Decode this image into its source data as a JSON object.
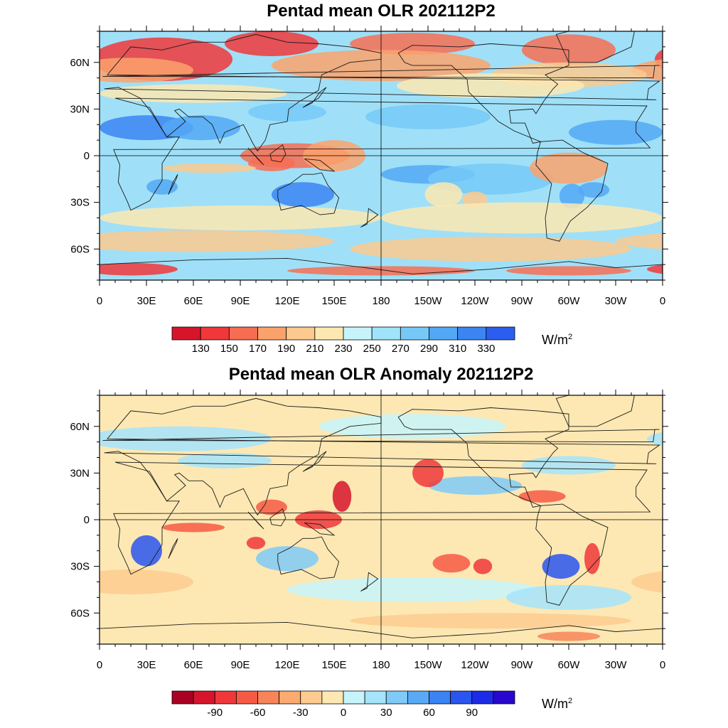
{
  "panels": [
    {
      "title": "Pentad mean OLR 202112P2",
      "lat_labels": [
        "60N",
        "30N",
        "0",
        "30S",
        "60S"
      ],
      "lon_labels": [
        "0",
        "30E",
        "60E",
        "90E",
        "120E",
        "150E",
        "180",
        "150W",
        "120W",
        "90W",
        "60W",
        "30W",
        "0"
      ],
      "colorbar": {
        "labels": [
          "130",
          "150",
          "170",
          "190",
          "210",
          "230",
          "250",
          "270",
          "290",
          "310",
          "330"
        ],
        "colors": [
          "#d7152a",
          "#f0373a",
          "#f76d52",
          "#fba26c",
          "#fcc98e",
          "#fde8b1",
          "#c7f4fb",
          "#9fe4fb",
          "#76c9f7",
          "#53a8f6",
          "#3b84f2",
          "#2b5ef0"
        ],
        "unit": "W/m",
        "unit_sup": "2"
      },
      "fill_color": "#9fe0f8"
    },
    {
      "title": "Pentad mean OLR Anomaly 202112P2",
      "lat_labels": [
        "60N",
        "30N",
        "0",
        "30S",
        "60S"
      ],
      "lon_labels": [
        "0",
        "30E",
        "60E",
        "90E",
        "120E",
        "150E",
        "180",
        "150W",
        "120W",
        "90W",
        "60W",
        "30W",
        "0"
      ],
      "colorbar": {
        "labels": [
          "-90",
          "-60",
          "-30",
          "0",
          "30",
          "60",
          "90"
        ],
        "colors": [
          "#a90024",
          "#d6152c",
          "#f0373a",
          "#f65a45",
          "#f8845a",
          "#fbaa70",
          "#fdcb8f",
          "#fde8b3",
          "#c7f4fb",
          "#a5e4fb",
          "#7fcaf7",
          "#5aa9f5",
          "#3b82f2",
          "#2a55ef",
          "#1c2ce6",
          "#2a07cf"
        ],
        "unit": "W/m",
        "unit_sup": "2"
      },
      "fill_color": "#fde8b3"
    }
  ]
}
